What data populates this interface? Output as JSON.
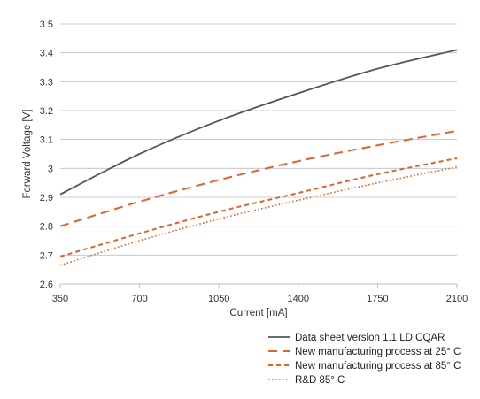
{
  "chart_data": {
    "type": "line",
    "title": "",
    "xlabel": "Current [mA]",
    "ylabel": "Forward Voltage [V]",
    "x_ticks": [
      350,
      700,
      1050,
      1400,
      1750,
      2100
    ],
    "y_ticks": [
      2.6,
      2.7,
      2.8,
      2.9,
      3,
      3.1,
      3.2,
      3.3,
      3.4,
      3.5
    ],
    "xlim": [
      350,
      2100
    ],
    "ylim": [
      2.6,
      3.5
    ],
    "grid": "horizontal",
    "legend_position": "bottom-right",
    "x": [
      350,
      700,
      1050,
      1400,
      1750,
      2100
    ],
    "series": [
      {
        "name": "Data sheet version 1.1 LD CQAR",
        "color": "#555555",
        "style": "solid",
        "values": [
          2.91,
          3.05,
          3.165,
          3.26,
          3.345,
          3.41
        ]
      },
      {
        "name": "New manufacturing process at 25° C",
        "color": "#e0642a",
        "style": "long-dash",
        "values": [
          2.8,
          2.885,
          2.96,
          3.025,
          3.08,
          3.13
        ]
      },
      {
        "name": "New manufacturing process at 85° C",
        "color": "#e0642a",
        "style": "short-dash",
        "values": [
          2.695,
          2.775,
          2.85,
          2.915,
          2.98,
          3.035
        ]
      },
      {
        "name": "R&D 85° C",
        "color": "#e0642a",
        "style": "dotted",
        "values": [
          2.665,
          2.75,
          2.825,
          2.89,
          2.95,
          3.005
        ]
      }
    ]
  }
}
